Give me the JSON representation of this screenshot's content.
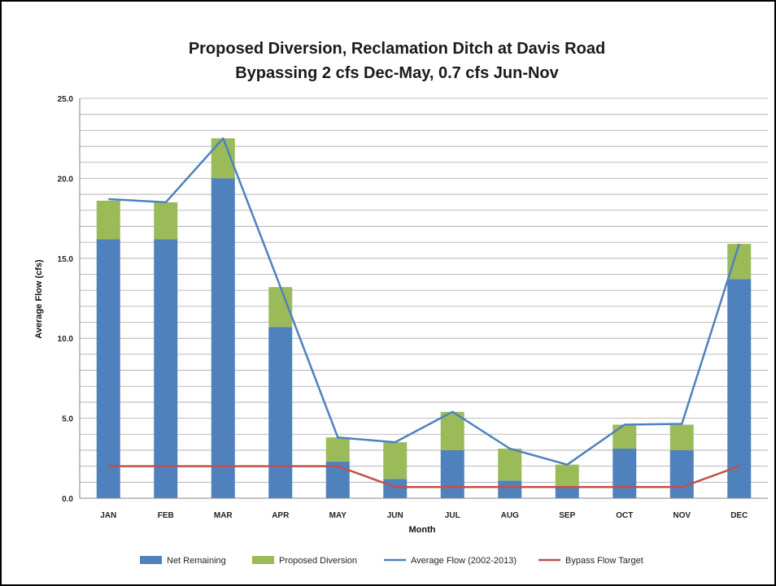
{
  "chart_data": {
    "type": "bar",
    "title": "Proposed Diversion, Reclamation Ditch at Davis Road",
    "subtitle": "Bypassing 2 cfs Dec-May, 0.7 cfs Jun-Nov",
    "xlabel": "Month",
    "ylabel": "Average Flow (cfs)",
    "ylim": [
      0,
      25
    ],
    "yticks": [
      "0.0",
      "5.0",
      "10.0",
      "15.0",
      "20.0",
      "25.0"
    ],
    "grid": true,
    "legend_position": "bottom",
    "categories": [
      "JAN",
      "FEB",
      "MAR",
      "APR",
      "MAY",
      "JUN",
      "JUL",
      "AUG",
      "SEP",
      "OCT",
      "NOV",
      "DEC"
    ],
    "stacked_series": [
      {
        "name": "Net Remaining",
        "color": "#4f81bd",
        "values": [
          16.2,
          16.2,
          20.0,
          10.7,
          2.3,
          1.2,
          3.0,
          1.1,
          0.7,
          3.1,
          3.0,
          13.7
        ]
      },
      {
        "name": "Proposed Diversion",
        "color": "#9bbb59",
        "values": [
          2.4,
          2.3,
          2.5,
          2.5,
          1.5,
          2.3,
          2.4,
          2.0,
          1.4,
          1.5,
          1.6,
          2.2
        ]
      }
    ],
    "line_series": [
      {
        "name": "Average Flow (2002-2013)",
        "color": "#4f81bd",
        "values": [
          18.7,
          18.5,
          22.5,
          13.2,
          3.8,
          3.5,
          5.4,
          3.1,
          2.1,
          4.6,
          4.65,
          15.9
        ]
      },
      {
        "name": "Bypass Flow Target",
        "color": "#c0504d",
        "values": [
          2.0,
          2.0,
          2.0,
          2.0,
          2.0,
          0.7,
          0.7,
          0.7,
          0.7,
          0.7,
          0.7,
          2.0
        ]
      }
    ]
  }
}
